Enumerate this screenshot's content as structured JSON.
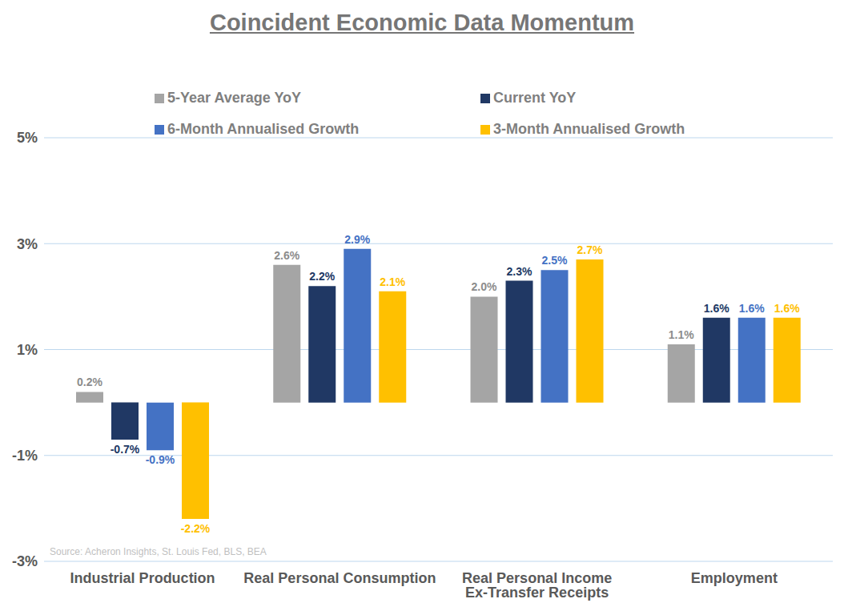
{
  "chart_data": {
    "type": "bar",
    "title": "Coincident Economic Data Momentum",
    "source": "Source: Acheron Insights, St. Louis Fed, BLS, BEA",
    "categories": [
      "Industrial Production",
      "Real Personal Consumption",
      "Real Personal Income Ex-Transfer Receipts",
      "Employment"
    ],
    "series": [
      {
        "name": "5-Year Average YoY",
        "color": "#a5a5a5",
        "values": [
          0.2,
          2.6,
          2.0,
          1.1
        ],
        "value_labels": [
          "0.2%",
          "2.6%",
          "2.0%",
          "1.1%"
        ]
      },
      {
        "name": "Current YoY",
        "color": "#203864",
        "values": [
          -0.7,
          2.2,
          2.3,
          1.6
        ],
        "value_labels": [
          "-0.7%",
          "2.2%",
          "2.3%",
          "1.6%"
        ]
      },
      {
        "name": "6-Month Annualised Growth",
        "color": "#4472c4",
        "values": [
          -0.9,
          2.9,
          2.5,
          1.6
        ],
        "value_labels": [
          "-0.9%",
          "2.9%",
          "2.5%",
          "1.6%"
        ]
      },
      {
        "name": "3-Month Annualised Growth",
        "color": "#ffc000",
        "values": [
          -2.2,
          2.1,
          2.7,
          1.6
        ],
        "value_labels": [
          "-2.2%",
          "2.1%",
          "2.7%",
          "1.6%"
        ]
      }
    ],
    "ylim": [
      -3,
      5
    ],
    "yticks": [
      {
        "value": -3,
        "label": "-3%"
      },
      {
        "value": -1,
        "label": "-1%"
      },
      {
        "value": 1,
        "label": "1%"
      },
      {
        "value": 3,
        "label": "3%"
      },
      {
        "value": 5,
        "label": "5%"
      }
    ],
    "grid": true,
    "legend": "top",
    "data_labels": true
  }
}
